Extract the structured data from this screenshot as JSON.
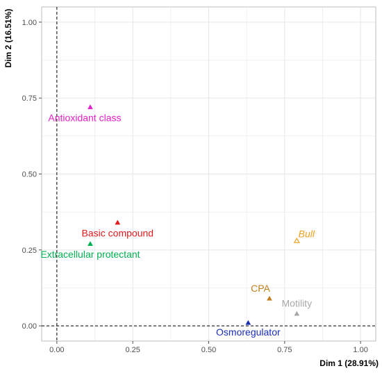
{
  "chart_data": {
    "type": "scatter",
    "xlabel": "Dim 1 (28.91%)",
    "ylabel": "Dim 2 (16.51%)",
    "xlim": [
      -0.05,
      1.05
    ],
    "ylim": [
      -0.05,
      1.05
    ],
    "x_ticks": [
      "0.00",
      "0.25",
      "0.50",
      "0.75",
      "1.00"
    ],
    "y_ticks": [
      "0.00",
      "0.25",
      "0.50",
      "0.75",
      "1.00"
    ],
    "grid": true,
    "reference_lines": {
      "x": 0,
      "y": 0,
      "style": "dashed"
    },
    "points": [
      {
        "label": "Antioxidant class",
        "x": 0.11,
        "y": 0.72,
        "color": "#e51ec8",
        "marker": "filled-triangle",
        "italic": false
      },
      {
        "label": "Basic compound",
        "x": 0.2,
        "y": 0.34,
        "color": "#e41a1c",
        "marker": "filled-triangle",
        "italic": false
      },
      {
        "label": "Extracellular protectant",
        "x": 0.11,
        "y": 0.27,
        "color": "#00b050",
        "marker": "filled-triangle",
        "italic": false
      },
      {
        "label": "Bull",
        "x": 0.79,
        "y": 0.28,
        "color": "#f0a020",
        "marker": "open-triangle",
        "italic": true
      },
      {
        "label": "CPA",
        "x": 0.7,
        "y": 0.09,
        "color": "#c08020",
        "marker": "filled-triangle",
        "italic": false
      },
      {
        "label": "Motility",
        "x": 0.79,
        "y": 0.04,
        "color": "#a8a8a8",
        "marker": "filled-triangle",
        "italic": false
      },
      {
        "label": "Osmoregulator",
        "x": 0.63,
        "y": 0.01,
        "color": "#1a2fb5",
        "marker": "filled-triangle",
        "italic": false
      }
    ]
  }
}
